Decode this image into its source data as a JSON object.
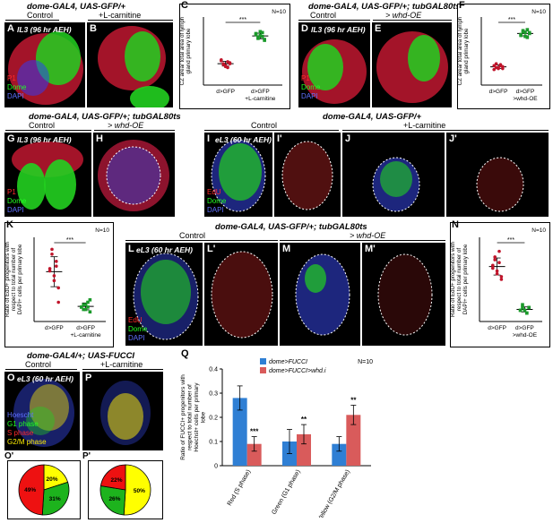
{
  "genotypes": {
    "top_left": "dome-GAL4, UAS-GFP/+",
    "top_right": "dome-GAL4, UAS-GFP/+; tubGAL80ts",
    "mid_left": "dome-GAL4, UAS-GFP/+; tubGAL80ts",
    "mid_right": "dome-GAL4, UAS-GFP/+",
    "row3": "dome-GAL4, UAS-GFP/+; tubGAL80ts",
    "row4": "dome-GAL4/+; UAS-FUCCI"
  },
  "conditions": {
    "control": "Control",
    "lcarnitine": "+L-carnitine",
    "whd_oe": "> whd-OE"
  },
  "stage": {
    "il3": "lL3 (96 hr AEH)",
    "el3": "eL3 (60 hr AEH)"
  },
  "channels": {
    "p1": "P1",
    "dome": "Dome",
    "dapi": "DAPI",
    "edu": "EdU",
    "hoescht": "Hoescht",
    "g1": "G1 phase",
    "s": "S phase",
    "g2m": "G2/M phase"
  },
  "panel_letters": {
    "A": "A",
    "B": "B",
    "C": "C",
    "D": "D",
    "E": "E",
    "F": "F",
    "G": "G",
    "H": "H",
    "I": "I",
    "Ip": "I'",
    "J": "J",
    "Jp": "J'",
    "K": "K",
    "L": "L",
    "Lp": "L'",
    "M": "M",
    "Mp": "M'",
    "N": "N",
    "O": "O",
    "Op": "O'",
    "P": "P",
    "Pp": "P'",
    "Q": "Q"
  },
  "stats": {
    "n10": "N=10",
    "sig3": "***",
    "sig2": "**"
  },
  "panel_c": {
    "ylabel": "CZ area/ total area of lymph gland primary lobe",
    "cat1": "d>GFP",
    "cat2": "d>GFP +L-carnitine",
    "group1": [
      0.55,
      0.52,
      0.5,
      0.48,
      0.53,
      0.56,
      0.51,
      0.49,
      0.54,
      0.52
    ],
    "group2": [
      0.82,
      0.78,
      0.85,
      0.8,
      0.76,
      0.83,
      0.79,
      0.81,
      0.84,
      0.77
    ]
  },
  "panel_f": {
    "ylabel": "CZ area/ total area of lymph gland primary lobe",
    "cat1": "d>GFP",
    "cat2": "d>GFP >whd-OE",
    "group1": [
      0.5,
      0.48,
      0.47,
      0.51,
      0.49,
      0.46,
      0.52,
      0.48,
      0.5,
      0.47
    ],
    "group2": [
      0.82,
      0.85,
      0.8,
      0.87,
      0.83,
      0.81,
      0.86,
      0.84,
      0.79,
      0.84
    ]
  },
  "panel_k": {
    "ylabel": "Ratio of EdU+ progenitors with respect to total number of DAPI+ cells per primary lobe",
    "cat1": "d>GFP",
    "cat2": "d>GFP +L-carnitine",
    "group1": [
      0.21,
      0.3,
      0.17,
      0.25,
      0.14,
      0.22,
      0.28,
      0.19,
      0.23,
      0.08
    ],
    "group2": [
      0.06,
      0.07,
      0.05,
      0.08,
      0.04,
      0.06,
      0.05,
      0.07,
      0.06,
      0.09
    ]
  },
  "panel_n": {
    "ylabel": "Ratio of EdU+ progenitors with respect to total number of DAPI+ cells per primary lobe",
    "cat1": "d>GFP",
    "cat2": "d>GFP >whd-OE",
    "group1": [
      0.19,
      0.22,
      0.17,
      0.25,
      0.15,
      0.2,
      0.23,
      0.18,
      0.21,
      0.16
    ],
    "group2": [
      0.04,
      0.05,
      0.04,
      0.03,
      0.05,
      0.04,
      0.06,
      0.04,
      0.03,
      0.05
    ]
  },
  "chart_data": {
    "type": "bar",
    "title": "",
    "ylabel": "Ratio of FUCCI+ progenitors with respect to total number of Hoechst+ cells per primary lobe",
    "categories": [
      "Red (S phase)",
      "Green (G1 phase)",
      "Yellow (G2/M phase)"
    ],
    "series": [
      {
        "name": "dome>FUCCI",
        "values": [
          0.28,
          0.1,
          0.09
        ],
        "errors": [
          0.05,
          0.05,
          0.03
        ],
        "color": "#2f7fd4"
      },
      {
        "name": "dome>FUCCI>whd.i",
        "values": [
          0.09,
          0.13,
          0.21
        ],
        "errors": [
          0.03,
          0.04,
          0.04
        ],
        "color": "#d95b5b"
      }
    ],
    "significance": [
      "***",
      "**",
      "**"
    ],
    "yticks": [
      "0",
      "0.1",
      "0.2",
      "0.3",
      "0.4"
    ],
    "ylim": [
      0,
      0.4
    ],
    "legend": "top-right"
  },
  "pies": {
    "control": {
      "values": [
        20,
        31,
        49
      ],
      "labels": [
        "20%",
        "31%",
        "49%"
      ],
      "colors": [
        "#ffff00",
        "#1db31d",
        "#ee1111"
      ]
    },
    "lcarnitine": {
      "values": [
        50,
        26,
        22
      ],
      "labels": [
        "50%",
        "26%",
        "22%"
      ],
      "colors": [
        "#ffff00",
        "#1db31d",
        "#ee1111"
      ]
    }
  },
  "colors": {
    "red": "#ff2a2a",
    "green": "#22ff22",
    "blue": "#4d5bff",
    "yellow": "#ffee00"
  }
}
